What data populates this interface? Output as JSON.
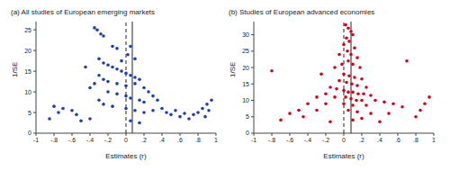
{
  "chart_data": [
    {
      "type": "scatter",
      "title": "(a) All studies of European emerging markets",
      "xlabel": "Estimates (r)",
      "ylabel": "1/SE",
      "color": "#1f3fa6",
      "marker": "circle",
      "x": [
        -0.35,
        -0.32,
        -0.28,
        -0.25,
        -0.45,
        -0.15,
        -0.1,
        0.05,
        0.1,
        -0.3,
        -0.25,
        -0.2,
        -0.15,
        -0.1,
        -0.05,
        0,
        0.05,
        0.1,
        0.15,
        -0.3,
        -0.25,
        -0.2,
        -0.1,
        0,
        0.1,
        0.2,
        0.25,
        -0.35,
        -0.4,
        -0.2,
        -0.1,
        0,
        0.05,
        0.15,
        0.2,
        0.3,
        0.35,
        -0.3,
        -0.25,
        -0.15,
        0,
        0.1,
        0.2,
        0.3,
        0.4,
        0.45,
        0.5,
        0.55,
        0.6,
        0.65,
        0.7,
        0.75,
        0.8,
        0.85,
        0.9,
        0.95,
        0.92,
        0.88,
        -0.55,
        -0.6,
        -0.7,
        -0.75,
        -0.8,
        -0.85,
        -0.5,
        -0.4,
        0.05,
        0.15,
        -0.05,
        0.02
      ],
      "values": [
        25.5,
        25,
        24,
        23.5,
        16,
        21,
        20.5,
        21,
        18,
        18,
        17,
        16.5,
        16,
        15.5,
        15,
        14.5,
        14,
        13.5,
        13,
        14,
        13,
        12.5,
        12,
        11.5,
        12,
        11,
        10,
        12,
        11,
        10,
        9.5,
        9,
        8.5,
        8,
        7.5,
        9,
        8,
        8,
        7,
        6.5,
        6,
        5.5,
        5,
        5.5,
        6,
        5,
        4.5,
        5.5,
        4,
        4.8,
        3.5,
        4.5,
        5,
        6,
        7,
        8,
        5.5,
        4,
        4.5,
        5.5,
        6,
        5,
        6.5,
        3.5,
        3,
        3.5,
        3,
        2.5,
        17.5,
        19
      ],
      "xlim": [
        -1,
        1
      ],
      "xticks": [
        -1,
        {
          "value": -0.8,
          "label": "-.8"
        },
        {
          "value": -0.6,
          "label": "-.6"
        },
        {
          "value": -0.4,
          "label": "-.4"
        },
        {
          "value": -0.2,
          "label": "-.2"
        },
        0,
        {
          "value": 0.2,
          "label": ".2"
        },
        {
          "value": 0.4,
          "label": ".4"
        },
        {
          "value": 0.6,
          "label": ".6"
        },
        {
          "value": 0.8,
          "label": ".8"
        },
        1
      ],
      "ylim": [
        0,
        27
      ],
      "yticks": [
        0,
        5,
        10,
        15,
        20,
        25
      ],
      "vlines": [
        {
          "value": 0,
          "line_style": "dashed"
        },
        {
          "value": 0.07,
          "line_style": "solid"
        }
      ]
    },
    {
      "type": "scatter",
      "title": "(b) Studies of European advanced economies",
      "xlabel": "Estimates (r)",
      "ylabel": "1/SE",
      "color": "#d0021b",
      "marker": "circle",
      "x": [
        0.02,
        0.05,
        0.08,
        0.03,
        0.06,
        0.1,
        0,
        0.12,
        0.04,
        0.08,
        -0.05,
        0.15,
        0.05,
        -0.02,
        0.1,
        0.18,
        -0.1,
        -0.8,
        -0.25,
        0,
        0.06,
        0.12,
        0.2,
        -0.05,
        0.03,
        0.09,
        0.15,
        0.25,
        -0.15,
        -0.08,
        0,
        0.05,
        0.1,
        0.16,
        0.22,
        0.3,
        -0.2,
        -0.3,
        -0.1,
        0.02,
        0.08,
        0.14,
        0.2,
        0.35,
        0.45,
        -0.4,
        -0.2,
        0,
        0.1,
        0.25,
        0.55,
        0.7,
        0.65,
        -0.5,
        -0.3,
        0.05,
        0.15,
        0.3,
        0.5,
        -0.6,
        -0.45,
        0.2,
        0.8,
        0.85,
        0.9,
        0.95,
        -0.7,
        0.1,
        0.4,
        -0.15
      ],
      "values": [
        33,
        32,
        31,
        29,
        28,
        30,
        27,
        26,
        25,
        24,
        24,
        23,
        22,
        21,
        21,
        20,
        20,
        19,
        18,
        18,
        17.5,
        17,
        16.5,
        16,
        15.5,
        15,
        14.5,
        14,
        14,
        13.5,
        13,
        12.5,
        12.5,
        12,
        12,
        11.5,
        12,
        11,
        11,
        11,
        10.5,
        10,
        10,
        10,
        9.5,
        9,
        9,
        9,
        8.5,
        8.5,
        9,
        22,
        8,
        7,
        7,
        7,
        6.5,
        6,
        6,
        6,
        5,
        4.5,
        5,
        7,
        9,
        11,
        4,
        4,
        3.5,
        3.5
      ],
      "xlim": [
        -1,
        1
      ],
      "xticks": [
        -1,
        {
          "value": -0.8,
          "label": "-.8"
        },
        {
          "value": -0.6,
          "label": "-.6"
        },
        {
          "value": -0.4,
          "label": "-.4"
        },
        {
          "value": -0.2,
          "label": "-.2"
        },
        0,
        {
          "value": 0.2,
          "label": ".2"
        },
        {
          "value": 0.4,
          "label": ".4"
        },
        {
          "value": 0.6,
          "label": ".6"
        },
        {
          "value": 0.8,
          "label": ".8"
        },
        1
      ],
      "ylim": [
        0,
        34
      ],
      "yticks": [
        0,
        5,
        10,
        15,
        20,
        25,
        30
      ],
      "vlines": [
        {
          "value": 0,
          "line_style": "dashed"
        },
        {
          "value": 0.08,
          "line_style": "solid"
        }
      ]
    }
  ]
}
